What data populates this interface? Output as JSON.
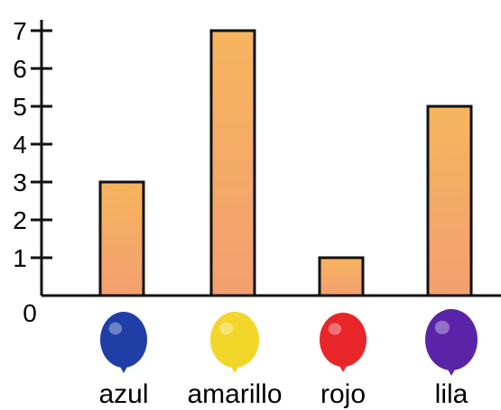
{
  "chart_data": {
    "type": "bar",
    "categories": [
      "azul",
      "amarillo",
      "rojo",
      "lila"
    ],
    "values": [
      3,
      7,
      1,
      5
    ],
    "ylim": [
      0,
      7
    ],
    "yticks": [
      0,
      1,
      2,
      3,
      4,
      5,
      6,
      7
    ],
    "title": "",
    "xlabel": "",
    "ylabel": "",
    "grid": false,
    "bar_color": "#f4aa5c",
    "bar_outline": "#111111",
    "category_icons": [
      {
        "icon": "blue-balloon-icon",
        "color": "#1f3fa6"
      },
      {
        "icon": "yellow-balloon-icon",
        "color": "#f2d62a"
      },
      {
        "icon": "red-balloon-icon",
        "color": "#e8262a"
      },
      {
        "icon": "purple-balloon-icon",
        "color": "#5a24a8"
      }
    ]
  }
}
